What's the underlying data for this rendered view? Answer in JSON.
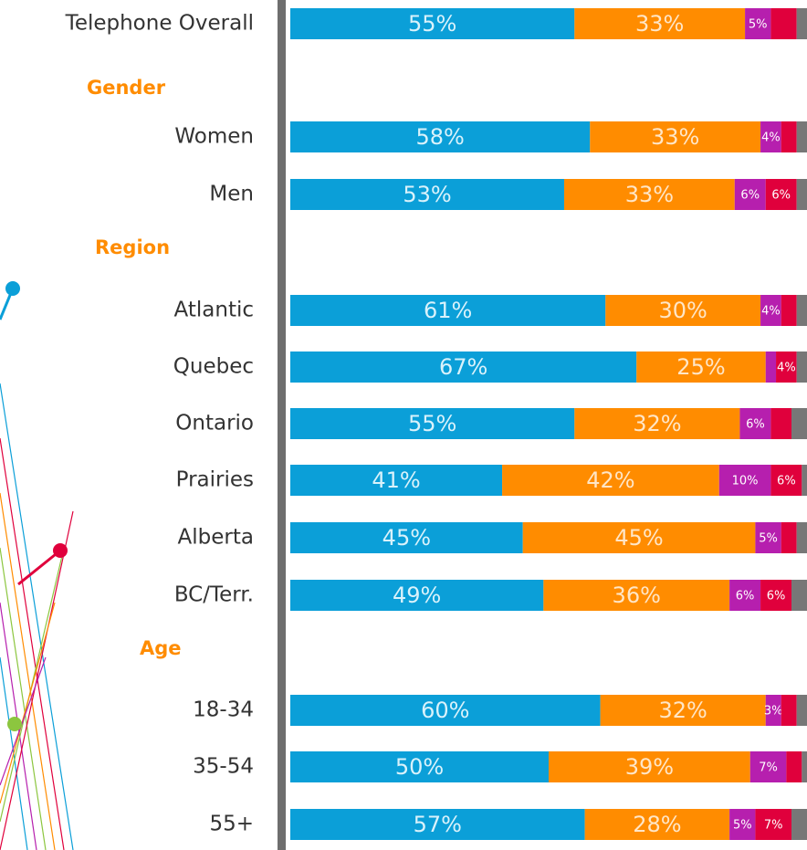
{
  "chart_data": {
    "type": "stacked_bar_horizontal",
    "categories": [
      "Telephone Overall",
      "Gender",
      "Women",
      "Men",
      "Region",
      "Atlantic",
      "Quebec",
      "Ontario",
      "Prairies",
      "Alberta",
      "BC/Terr.",
      "Age",
      "18-34",
      "35-54",
      "55+"
    ],
    "header_color": "#ff8c00",
    "category_color": "#333333",
    "xlim": [
      0,
      100
    ],
    "series": [
      {
        "color": "#0b9fd8",
        "label_color": "#d9f2fb",
        "values": [
          55,
          null,
          58,
          53,
          null,
          61,
          67,
          55,
          41,
          45,
          49,
          null,
          60,
          50,
          57
        ],
        "value_labels": [
          "55%",
          null,
          "58%",
          "53%",
          null,
          "61%",
          "67%",
          "55%",
          "41%",
          "45%",
          "49%",
          null,
          "60%",
          "50%",
          "57%"
        ]
      },
      {
        "color": "#ff8c00",
        "label_color": "#ffe6c7",
        "values": [
          33,
          null,
          33,
          33,
          null,
          30,
          25,
          32,
          42,
          45,
          36,
          null,
          32,
          39,
          28
        ],
        "value_labels": [
          "33%",
          null,
          "33%",
          "33%",
          null,
          "30%",
          "25%",
          "32%",
          "42%",
          "45%",
          "36%",
          null,
          "32%",
          "39%",
          "28%"
        ]
      },
      {
        "color": "#b61fae",
        "label_color": "#ffffff",
        "values": [
          5,
          null,
          4,
          6,
          null,
          4,
          2,
          6,
          10,
          5,
          6,
          null,
          3,
          7,
          5
        ],
        "value_labels": [
          "5%",
          null,
          "4%",
          "6%",
          null,
          "4%",
          null,
          "6%",
          "10%",
          "5%",
          "6%",
          null,
          "3%",
          "7%",
          "5%"
        ]
      },
      {
        "color": "#e0003c",
        "label_color": "#ffffff",
        "values": [
          5,
          null,
          3,
          6,
          null,
          3,
          4,
          4,
          6,
          3,
          6,
          null,
          3,
          3,
          7
        ],
        "value_labels": [
          null,
          null,
          null,
          "6%",
          null,
          null,
          "4%",
          null,
          "6%",
          null,
          "6%",
          null,
          null,
          null,
          "7%"
        ]
      },
      {
        "color": "#777777",
        "label_color": "#ffffff",
        "values": [
          2,
          null,
          2,
          2,
          null,
          2,
          2,
          3,
          1,
          2,
          3,
          null,
          2,
          1,
          3
        ],
        "value_labels": [
          null,
          null,
          null,
          null,
          null,
          null,
          null,
          null,
          null,
          null,
          null,
          null,
          null,
          null,
          null
        ]
      }
    ]
  }
}
